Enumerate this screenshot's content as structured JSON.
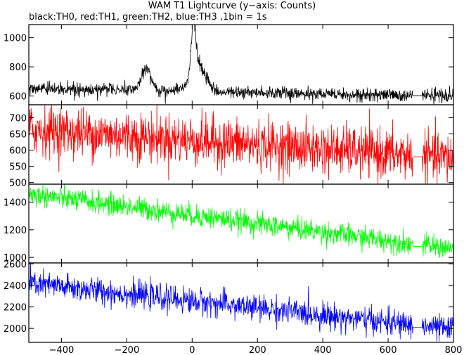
{
  "title": "WAM T1 Lightcurve (y−axis: Counts)",
  "subtitle": "black:TH0, red:TH1, green:TH2, blue:TH3 ,1bin = 1s",
  "chart_data": {
    "type": "line",
    "x_ticks": [
      -400,
      -200,
      0,
      200,
      400,
      600,
      800
    ],
    "xlim": [
      -500,
      800
    ],
    "data_gap": [
      675,
      705
    ],
    "panels": [
      {
        "name": "TH0",
        "color": "#000000",
        "ylim": [
          540,
          1090
        ],
        "y_ticks": [
          600,
          800,
          1000
        ],
        "baseline_start": 650,
        "baseline_end": 600,
        "noise": 22,
        "bursts": [
          {
            "x": -140,
            "peak": 820,
            "width": 14
          },
          {
            "x": 4,
            "peak": 1090,
            "width": 6
          },
          {
            "x": 18,
            "peak": 850,
            "width": 22
          }
        ]
      },
      {
        "name": "TH1",
        "color": "#ff0000",
        "ylim": [
          495,
          740
        ],
        "y_ticks": [
          500,
          550,
          600,
          650,
          700
        ],
        "baseline_start": 665,
        "baseline_end": 575,
        "noise": 38,
        "bursts": []
      },
      {
        "name": "TH2",
        "color": "#00ff00",
        "ylim": [
          960,
          1530
        ],
        "y_ticks": [
          1000,
          1200,
          1400
        ],
        "baseline_start": 1460,
        "baseline_end": 1060,
        "noise": 40,
        "bursts": []
      },
      {
        "name": "TH3",
        "color": "#0000ff",
        "ylim": [
          1870,
          2610
        ],
        "y_ticks": [
          2000,
          2200,
          2400,
          2600
        ],
        "baseline_start": 2420,
        "baseline_end": 1990,
        "noise": 60,
        "bursts": []
      }
    ]
  }
}
